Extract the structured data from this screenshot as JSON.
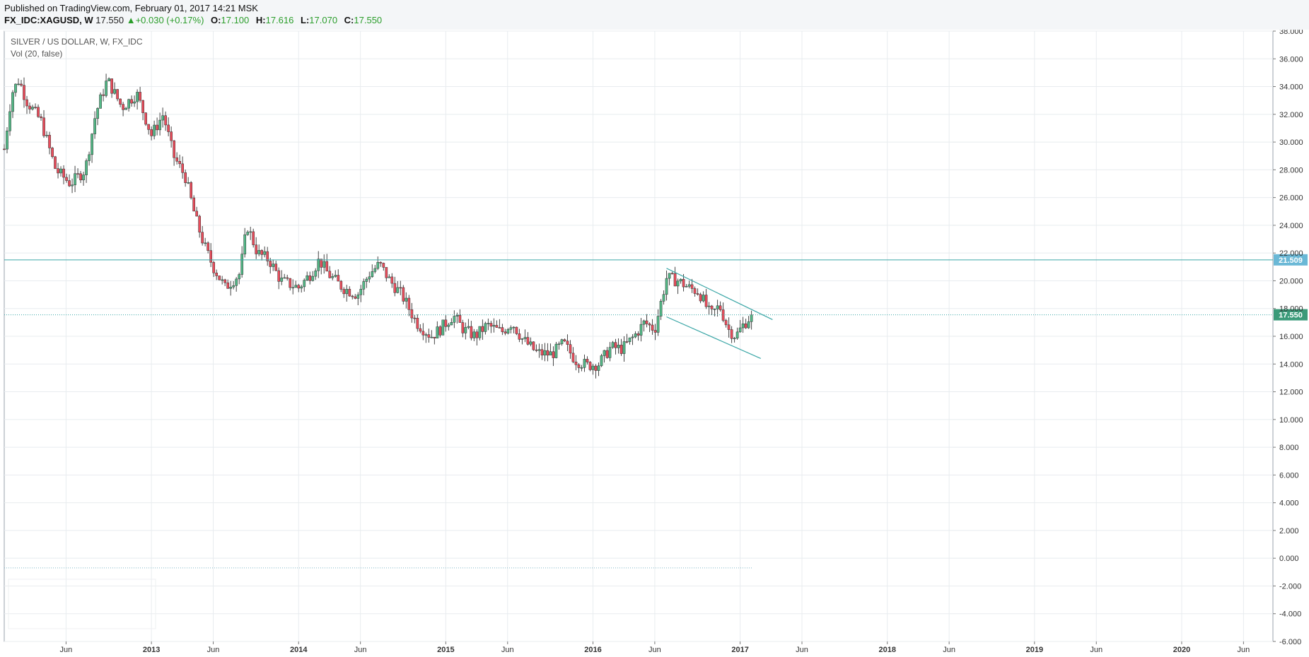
{
  "header": {
    "published": "Published on TradingView.com, February 01, 2017 14:21 MSK",
    "symbol": "FX_IDC:XAGUSD, W",
    "last": "17.550",
    "change": "+0.030 (+0.17%)",
    "open_label": "O:",
    "open": "17.100",
    "high_label": "H:",
    "high": "17.616",
    "low_label": "L:",
    "low": "17.070",
    "close_label": "C:",
    "close": "17.550"
  },
  "legend": {
    "title": "SILVER / US DOLLAR, W, FX_IDC",
    "volume": "Vol (20, false)"
  },
  "colors": {
    "up": "#53b987",
    "down": "#eb4d5c",
    "line": "#3aa6a6",
    "grid": "#e8ecef"
  },
  "chart_data": {
    "type": "candlestick",
    "y_axis": {
      "min": -6,
      "max": 38,
      "step": 2,
      "position": "right",
      "decimals": 3
    },
    "x_ticks": [
      {
        "label": "Jun",
        "t": 2012.42
      },
      {
        "label": "2013",
        "t": 2013.0
      },
      {
        "label": "Jun",
        "t": 2013.42
      },
      {
        "label": "2014",
        "t": 2014.0
      },
      {
        "label": "Jun",
        "t": 2014.42
      },
      {
        "label": "2015",
        "t": 2015.0
      },
      {
        "label": "Jun",
        "t": 2015.42
      },
      {
        "label": "2016",
        "t": 2016.0
      },
      {
        "label": "Jun",
        "t": 2016.42
      },
      {
        "label": "2017",
        "t": 2017.0
      },
      {
        "label": "Jun",
        "t": 2017.42
      },
      {
        "label": "2018",
        "t": 2018.0
      },
      {
        "label": "Jun",
        "t": 2018.42
      },
      {
        "label": "2019",
        "t": 2019.0
      },
      {
        "label": "Jun",
        "t": 2019.42
      },
      {
        "label": "2020",
        "t": 2020.0
      },
      {
        "label": "Jun",
        "t": 2020.42
      }
    ],
    "price_path": [
      [
        2012.0,
        29.5
      ],
      [
        2012.05,
        33.5
      ],
      [
        2012.1,
        34.5
      ],
      [
        2012.15,
        33.0
      ],
      [
        2012.25,
        31.5
      ],
      [
        2012.35,
        28.0
      ],
      [
        2012.45,
        27.0
      ],
      [
        2012.55,
        28.0
      ],
      [
        2012.62,
        32.0
      ],
      [
        2012.7,
        34.5
      ],
      [
        2012.8,
        32.5
      ],
      [
        2012.9,
        33.5
      ],
      [
        2013.0,
        30.5
      ],
      [
        2013.08,
        32.0
      ],
      [
        2013.15,
        29.0
      ],
      [
        2013.23,
        27.5
      ],
      [
        2013.3,
        24.5
      ],
      [
        2013.36,
        22.5
      ],
      [
        2013.42,
        21.0
      ],
      [
        2013.5,
        19.5
      ],
      [
        2013.6,
        20.5
      ],
      [
        2013.65,
        24.0
      ],
      [
        2013.72,
        22.0
      ],
      [
        2013.8,
        21.5
      ],
      [
        2013.88,
        20.0
      ],
      [
        2014.0,
        19.5
      ],
      [
        2014.08,
        20.5
      ],
      [
        2014.14,
        21.5
      ],
      [
        2014.2,
        20.5
      ],
      [
        2014.3,
        19.5
      ],
      [
        2014.4,
        19.0
      ],
      [
        2014.48,
        20.5
      ],
      [
        2014.55,
        21.2
      ],
      [
        2014.62,
        20.0
      ],
      [
        2014.7,
        19.0
      ],
      [
        2014.8,
        17.0
      ],
      [
        2014.9,
        16.0
      ],
      [
        2014.96,
        16.5
      ],
      [
        2015.05,
        17.5
      ],
      [
        2015.12,
        16.5
      ],
      [
        2015.2,
        16.0
      ],
      [
        2015.28,
        16.8
      ],
      [
        2015.38,
        16.3
      ],
      [
        2015.45,
        17.0
      ],
      [
        2015.52,
        15.8
      ],
      [
        2015.62,
        14.8
      ],
      [
        2015.72,
        14.7
      ],
      [
        2015.8,
        15.5
      ],
      [
        2015.88,
        14.3
      ],
      [
        2015.96,
        13.9
      ],
      [
        2016.04,
        14.0
      ],
      [
        2016.12,
        15.2
      ],
      [
        2016.2,
        15.1
      ],
      [
        2016.28,
        16.0
      ],
      [
        2016.35,
        17.0
      ],
      [
        2016.42,
        16.5
      ],
      [
        2016.5,
        20.2
      ],
      [
        2016.58,
        20.0
      ],
      [
        2016.65,
        19.5
      ],
      [
        2016.72,
        19.2
      ],
      [
        2016.8,
        17.5
      ],
      [
        2016.86,
        18.2
      ],
      [
        2016.92,
        16.5
      ],
      [
        2016.97,
        16.0
      ],
      [
        2017.02,
        16.8
      ],
      [
        2017.08,
        17.55
      ]
    ],
    "horizontal_lines": [
      {
        "value": 21.509,
        "label": "21.509",
        "style": "solid"
      },
      {
        "value": 17.55,
        "label": "17.550",
        "style": "dotted"
      }
    ],
    "channel_lines": [
      {
        "from": [
          2016.5,
          20.9
        ],
        "to": [
          2017.22,
          17.2
        ]
      },
      {
        "from": [
          2016.5,
          17.4
        ],
        "to": [
          2017.14,
          14.4
        ]
      }
    ],
    "volume_baseline": -0.7
  }
}
